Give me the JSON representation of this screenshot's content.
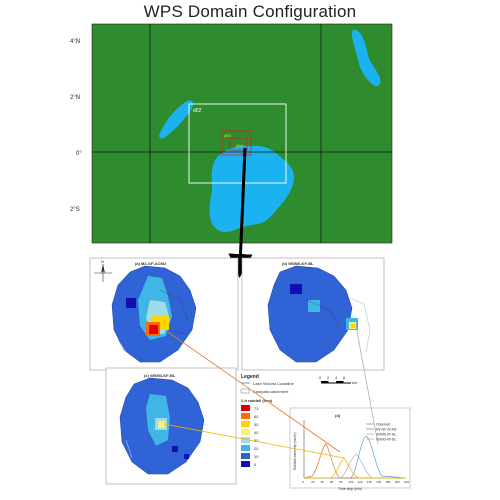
{
  "title": "WPS Domain Configuration",
  "domain_map": {
    "lat_labels": [
      "4°N",
      "2°N",
      "0°",
      "2°S"
    ],
    "domain_labels": {
      "d02": "d02",
      "d03": "d03",
      "d04": "d04"
    },
    "colors": {
      "land": "#2e8b2e",
      "water": "#1ab3f0",
      "d02_box": "#ffffff",
      "inner_box": "#e02020"
    }
  },
  "panels": {
    "a": {
      "label": "(a) M2-GF-ACM2"
    },
    "b": {
      "label": "(b) WSM6-KF-BL"
    },
    "c": {
      "label": "(c) WSM3-KF-BL"
    },
    "d": {
      "label": "(d)"
    }
  },
  "scale_bar": {
    "ticks": [
      "0",
      "2",
      "4",
      "6"
    ],
    "unit": "km"
  },
  "compass": "N",
  "legend": {
    "title": "Legend",
    "items": [
      "Lake Victoria Coastline",
      "Kampala catchment"
    ],
    "rain_title": "2-h rainfall (mm)",
    "bins": [
      {
        "label": "73",
        "color": "#e00000"
      },
      {
        "label": "60",
        "color": "#ff6a00"
      },
      {
        "label": "50",
        "color": "#ffd400"
      },
      {
        "label": "40",
        "color": "#f4f07a"
      },
      {
        "label": "30",
        "color": "#9fdcea"
      },
      {
        "label": "20",
        "color": "#3fb6e6"
      },
      {
        "label": "10",
        "color": "#2f63d6"
      },
      {
        "label": "0",
        "color": "#1010b0"
      }
    ]
  },
  "line_plot": {
    "ylabel": "Rainfall intensity (mm/h)",
    "xlabel": "Time step (min)",
    "x_ticks": [
      "0",
      "20",
      "40",
      "60",
      "80",
      "100",
      "120",
      "140",
      "160",
      "180",
      "200",
      "220"
    ],
    "series_names": [
      "Observed",
      "M2-GF-ACM2",
      "WSM6-KF-BL",
      "WSM3-KF-BL"
    ],
    "series_colors": [
      "#5aa0d8",
      "#e07a30",
      "#b0b0b0",
      "#f0b400"
    ]
  }
}
